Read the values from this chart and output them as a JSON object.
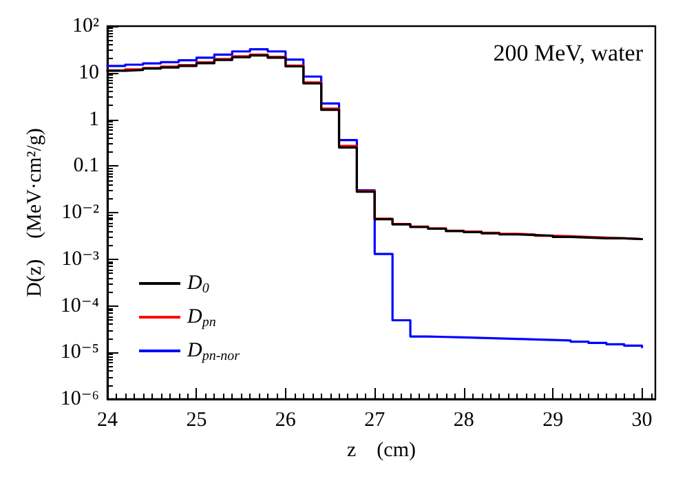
{
  "chart_data": {
    "type": "step",
    "xlabel": "z    (cm)",
    "ylabel": "D(z)    (MeV·cm²/g)",
    "annotations": [
      "200 MeV, water"
    ],
    "x": [
      24.0,
      24.2,
      24.4,
      24.6,
      24.8,
      25.0,
      25.2,
      25.4,
      25.6,
      25.8,
      26.0,
      26.2,
      26.4,
      26.6,
      26.8,
      27.0,
      27.2,
      27.4,
      27.6,
      27.8,
      28.0,
      28.2,
      28.4,
      28.6,
      28.8,
      29.0,
      29.2,
      29.4,
      29.6,
      29.8,
      30.0
    ],
    "series": [
      {
        "name": "D$_{0}$",
        "color": "#000000",
        "values": [
          11,
          11.5,
          12.3,
          13,
          14,
          16,
          18.8,
          21.5,
          23.5,
          21,
          13.7,
          5.9,
          1.6,
          0.25,
          0.028,
          0.0072,
          0.0056,
          0.0049,
          0.0045,
          0.004,
          0.0038,
          0.0036,
          0.0034,
          0.0033,
          0.0032,
          0.003,
          0.0029,
          0.0028,
          0.0028,
          0.0027,
          0.0026
        ]
      },
      {
        "name": "D$_{pn}$",
        "color": "#ff0000",
        "values": [
          11.2,
          11.8,
          12.6,
          13.5,
          14.6,
          16.8,
          19.7,
          22.5,
          24.6,
          22,
          14.3,
          6.2,
          1.7,
          0.27,
          0.029,
          0.0074,
          0.0057,
          0.005,
          0.0046,
          0.0041,
          0.0039,
          0.0037,
          0.0035,
          0.0034,
          0.0032,
          0.0031,
          0.003,
          0.0029,
          0.0028,
          0.0027,
          0.0026
        ]
      },
      {
        "name": "D$_{pn-nor}$",
        "color": "#0000ff",
        "values": [
          14,
          14.9,
          15.9,
          16.9,
          18.5,
          21,
          24.5,
          28.7,
          31.8,
          28.7,
          19.1,
          8.3,
          2.2,
          0.36,
          0.03,
          0.0013,
          4.9e-05,
          2.2e-05,
          2.15e-05,
          2.1e-05,
          2.05e-05,
          2e-05,
          1.95e-05,
          1.9e-05,
          1.85e-05,
          1.8e-05,
          1.7e-05,
          1.6e-05,
          1.5e-05,
          1.4e-05,
          1.3e-05
        ]
      }
    ],
    "xlim": [
      24,
      30.15
    ],
    "xticks": [
      24,
      25,
      26,
      27,
      28,
      29,
      30
    ],
    "ylim": [
      1e-06,
      100
    ],
    "log": true,
    "yticks": [
      {
        "value": 1e-06,
        "label": "10⁻⁶"
      },
      {
        "value": 1e-05,
        "label": "10⁻⁵"
      },
      {
        "value": 0.0001,
        "label": "10⁻⁴"
      },
      {
        "value": 0.001,
        "label": "10⁻³"
      },
      {
        "value": 0.01,
        "label": "10⁻²"
      },
      {
        "value": 0.1,
        "label": "0.1"
      },
      {
        "value": 1,
        "label": "1"
      },
      {
        "value": 10,
        "label": "10"
      },
      {
        "value": 100,
        "label": "10²"
      }
    ],
    "grid": false,
    "legend": "bottom left",
    "marker": "none",
    "line_style": "solid"
  }
}
